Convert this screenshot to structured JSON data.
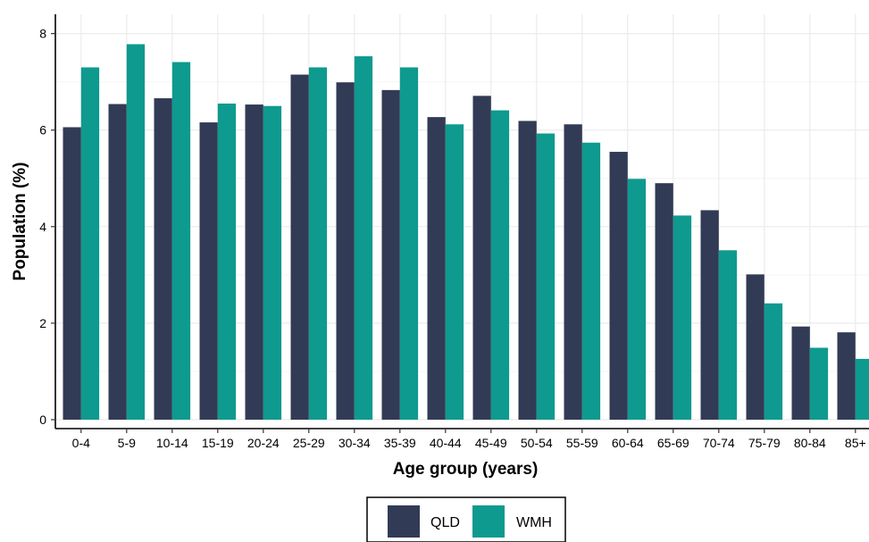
{
  "chart_data": {
    "type": "bar",
    "xlabel": "Age group (years)",
    "ylabel": "Population (%)",
    "ylim": [
      0,
      8.4
    ],
    "yticks": [
      0,
      2,
      4,
      6,
      8
    ],
    "grid": true,
    "legend_position": "bottom",
    "categories": [
      "0-4",
      "5-9",
      "10-14",
      "15-19",
      "20-24",
      "25-29",
      "30-34",
      "35-39",
      "40-44",
      "45-49",
      "50-54",
      "55-59",
      "60-64",
      "65-69",
      "70-74",
      "75-79",
      "80-84",
      "85+"
    ],
    "series": [
      {
        "name": "QLD",
        "color": "#323b55",
        "values": [
          6.06,
          6.54,
          6.66,
          6.16,
          6.53,
          7.15,
          6.99,
          6.83,
          6.27,
          6.71,
          6.19,
          6.12,
          5.55,
          4.9,
          4.34,
          3.01,
          1.93,
          1.81
        ]
      },
      {
        "name": "WMH",
        "color": "#0e9a8f",
        "values": [
          7.3,
          7.78,
          7.41,
          6.55,
          6.5,
          7.3,
          7.53,
          7.3,
          6.12,
          6.41,
          5.93,
          5.74,
          4.99,
          4.23,
          3.51,
          2.41,
          1.49,
          1.26
        ]
      }
    ]
  }
}
